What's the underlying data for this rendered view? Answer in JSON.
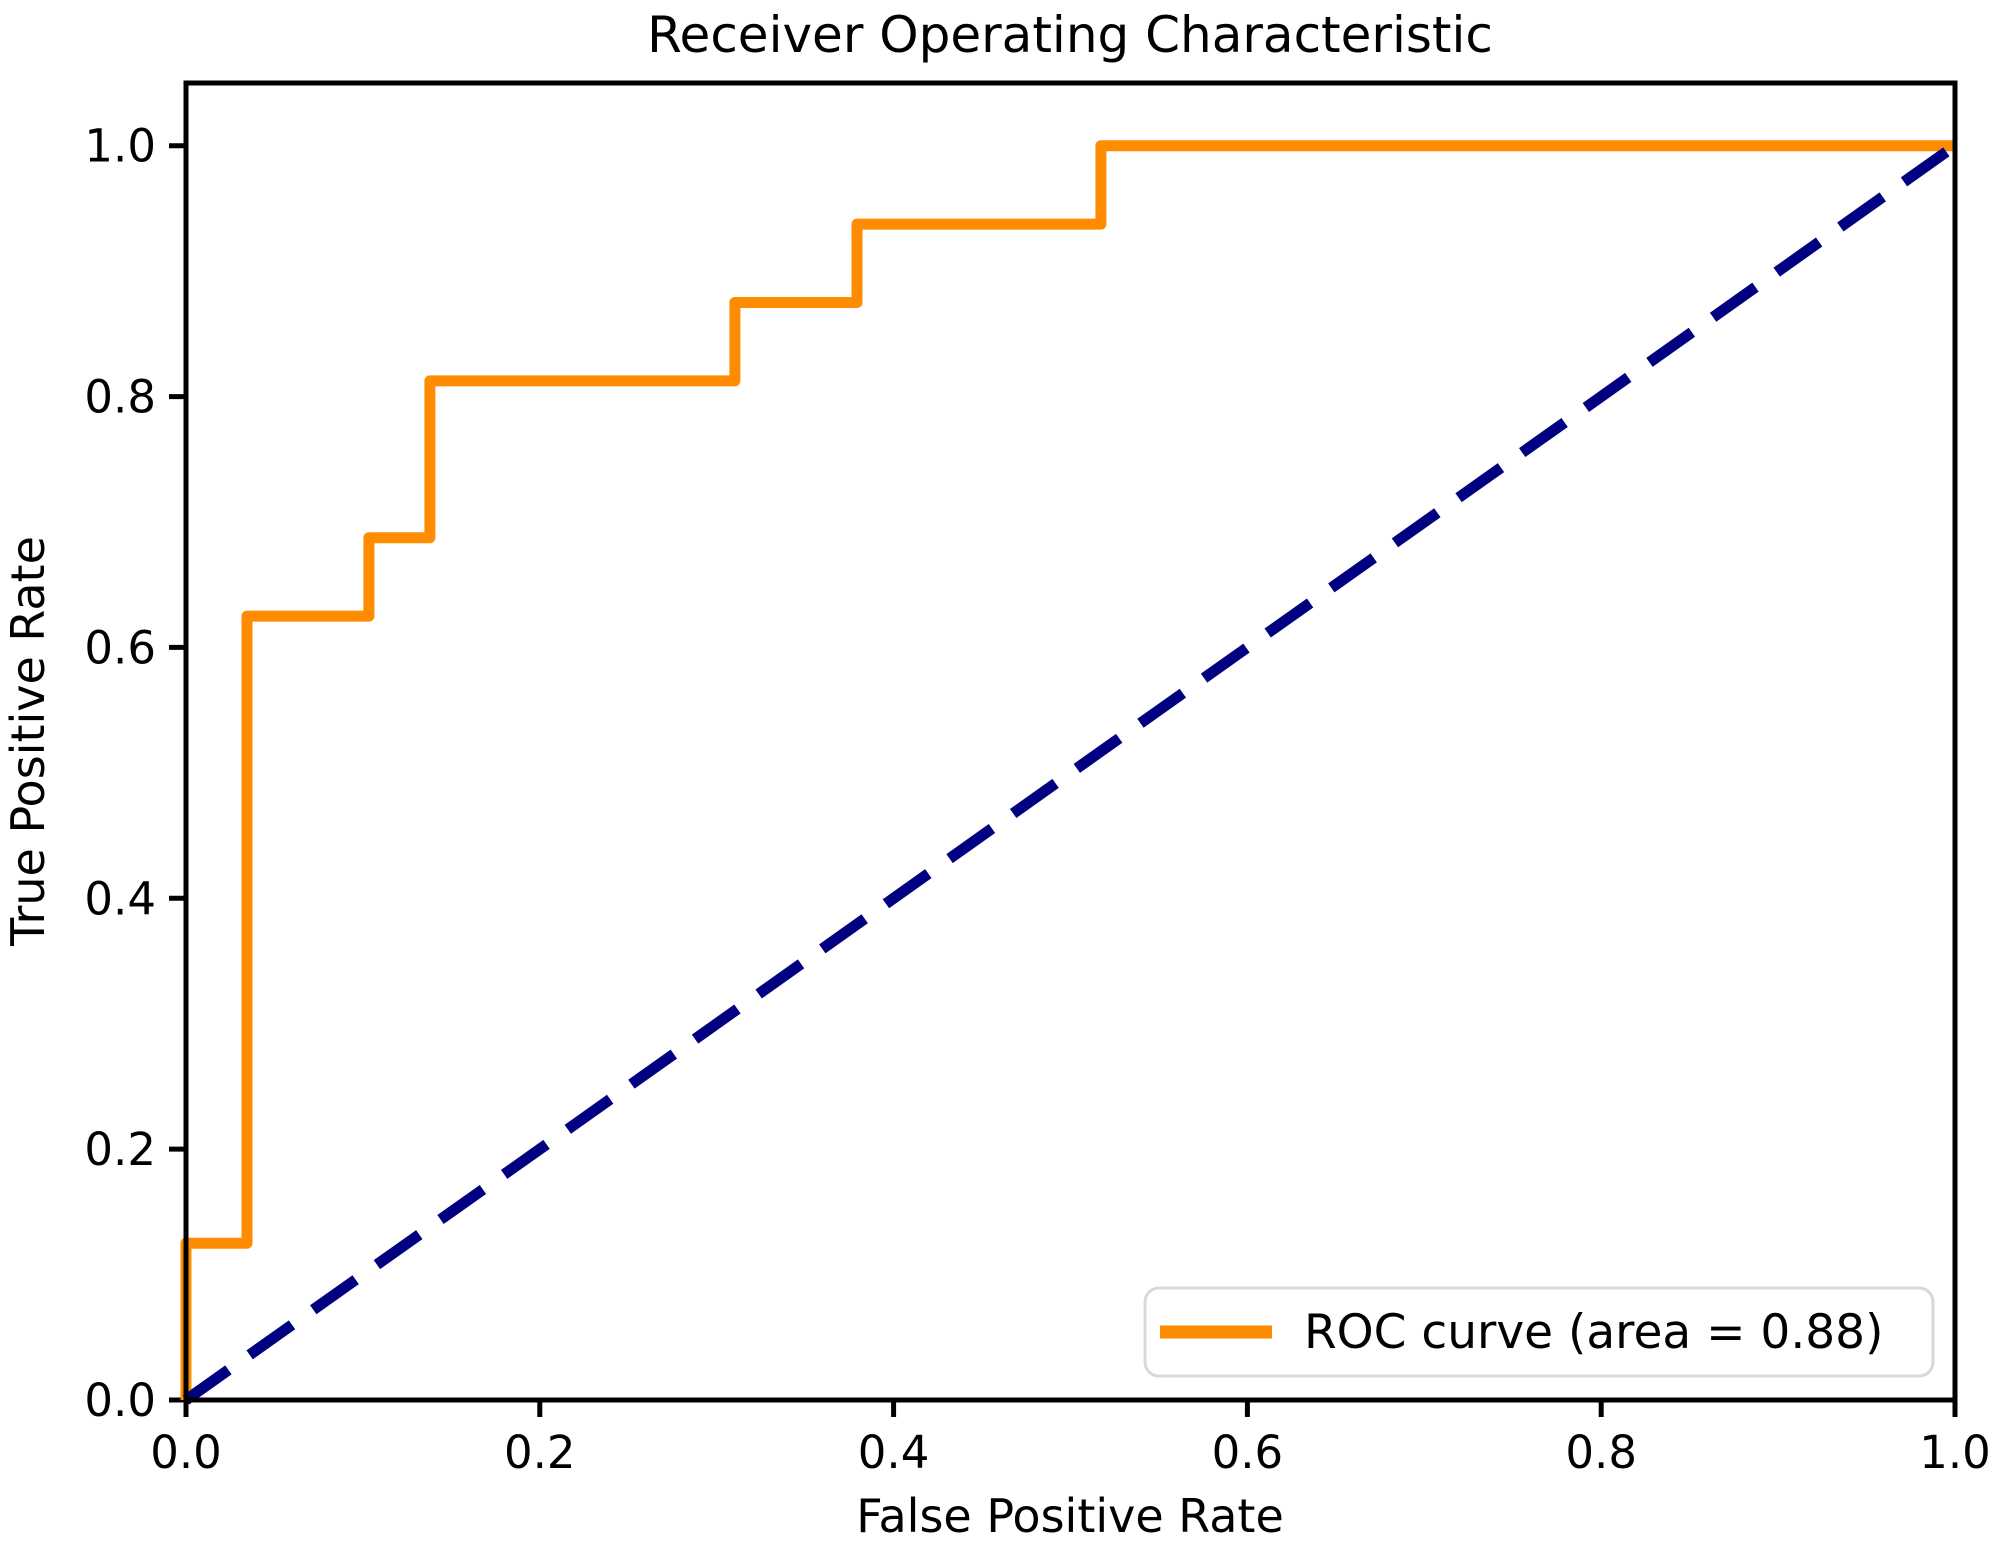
{
  "chart_data": {
    "type": "line",
    "title": "Receiver Operating Characteristic",
    "xlabel": "False Positive Rate",
    "ylabel": "True Positive Rate",
    "xlim": [
      0.0,
      1.0
    ],
    "ylim": [
      0.0,
      1.05
    ],
    "x_ticks": [
      0.0,
      0.2,
      0.4,
      0.6,
      0.8,
      1.0
    ],
    "x_tick_labels": [
      "0.0",
      "0.2",
      "0.4",
      "0.6",
      "0.8",
      "1.0"
    ],
    "y_ticks": [
      0.0,
      0.2,
      0.4,
      0.6,
      0.8,
      1.0
    ],
    "y_tick_labels": [
      "0.0",
      "0.2",
      "0.4",
      "0.6",
      "0.8",
      "1.0"
    ],
    "grid": false,
    "legend": {
      "position": "lower right",
      "entries": [
        {
          "label": "ROC curve (area = 0.88)",
          "color": "#FF8C00",
          "style": "solid"
        }
      ]
    },
    "series": [
      {
        "name": "ROC curve",
        "color": "#FF8C00",
        "style": "solid",
        "auc": 0.88,
        "points": [
          [
            0.0,
            0.0
          ],
          [
            0.0,
            0.125
          ],
          [
            0.0345,
            0.125
          ],
          [
            0.0345,
            0.625
          ],
          [
            0.1034,
            0.625
          ],
          [
            0.1034,
            0.6875
          ],
          [
            0.1379,
            0.6875
          ],
          [
            0.1379,
            0.8125
          ],
          [
            0.3103,
            0.8125
          ],
          [
            0.3103,
            0.875
          ],
          [
            0.3793,
            0.875
          ],
          [
            0.3793,
            0.9375
          ],
          [
            0.5172,
            0.9375
          ],
          [
            0.5172,
            1.0
          ],
          [
            1.0,
            1.0
          ]
        ]
      },
      {
        "name": "chance diagonal",
        "color": "#000080",
        "style": "dashed",
        "points": [
          [
            0.0,
            0.0
          ],
          [
            1.0,
            1.0
          ]
        ]
      }
    ]
  },
  "colors": {
    "roc_curve": "#FF8C00",
    "chance_line": "#000080",
    "axes": "#000000",
    "legend_border": "#d8d8d8",
    "background": "#ffffff"
  }
}
